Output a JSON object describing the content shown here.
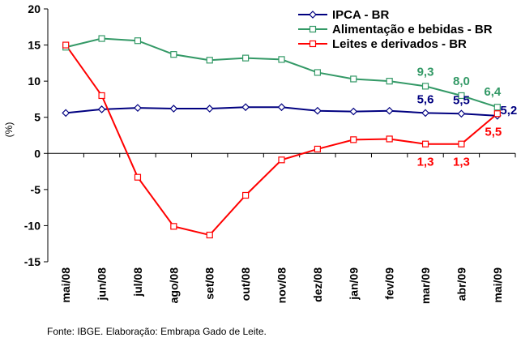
{
  "chart_data": {
    "type": "line",
    "title": "",
    "xlabel": "",
    "ylabel": "(%)",
    "ylim": [
      -15,
      20
    ],
    "yticks": [
      20,
      15,
      10,
      5,
      0,
      -5,
      -10,
      -15
    ],
    "grid": false,
    "legend_position": "top-right",
    "categories": [
      "mai/08",
      "jun/08",
      "jul/08",
      "ago/08",
      "set/08",
      "out/08",
      "nov/08",
      "dez/08",
      "jan/09",
      "fev/09",
      "mar/09",
      "abr/09",
      "mai/09"
    ],
    "series": [
      {
        "name": "IPCA - BR",
        "color": "#000080",
        "marker": "diamond",
        "values": [
          5.6,
          6.1,
          6.3,
          6.2,
          6.2,
          6.4,
          6.4,
          5.9,
          5.8,
          5.9,
          5.6,
          5.5,
          5.2
        ]
      },
      {
        "name": "Alimentação e bebidas - BR",
        "color": "#339966",
        "marker": "square",
        "values": [
          14.7,
          15.9,
          15.6,
          13.7,
          12.9,
          13.2,
          13.0,
          11.2,
          10.3,
          10.0,
          9.3,
          8.0,
          6.4
        ]
      },
      {
        "name": "Leites e derivados - BR",
        "color": "#ff0000",
        "marker": "square",
        "values": [
          15.0,
          8.0,
          -3.3,
          -10.1,
          -11.3,
          -5.8,
          -0.9,
          0.6,
          1.9,
          2.0,
          1.3,
          1.3,
          5.5
        ]
      }
    ],
    "annotations": [
      {
        "series": 0,
        "index": 10,
        "text": "5,6",
        "color": "#000080"
      },
      {
        "series": 0,
        "index": 11,
        "text": "5,5",
        "color": "#000080"
      },
      {
        "series": 0,
        "index": 12,
        "text": "5,2",
        "color": "#000080"
      },
      {
        "series": 1,
        "index": 10,
        "text": "9,3",
        "color": "#339966"
      },
      {
        "series": 1,
        "index": 11,
        "text": "8,0",
        "color": "#339966"
      },
      {
        "series": 1,
        "index": 12,
        "text": "6,4",
        "color": "#339966"
      },
      {
        "series": 2,
        "index": 10,
        "text": "1,3",
        "color": "#ff0000"
      },
      {
        "series": 2,
        "index": 11,
        "text": "1,3",
        "color": "#ff0000"
      },
      {
        "series": 2,
        "index": 12,
        "text": "5,5",
        "color": "#ff0000"
      }
    ]
  },
  "source_note": "Fonte: IBGE. Elaboração: Embrapa Gado de Leite."
}
